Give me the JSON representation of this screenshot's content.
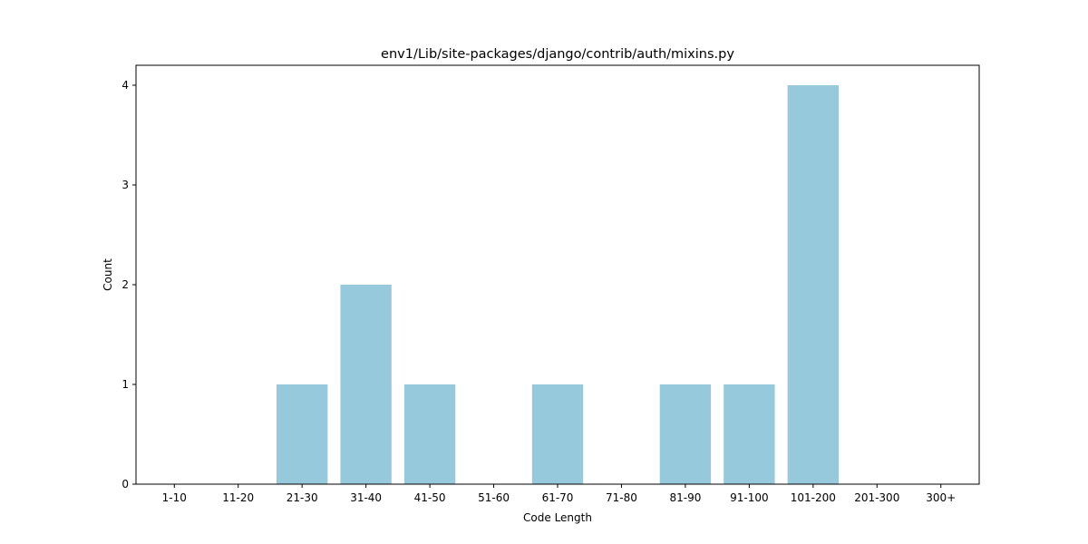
{
  "chart_data": {
    "type": "bar",
    "title": "env1/Lib/site-packages/django/contrib/auth/mixins.py",
    "xlabel": "Code Length",
    "ylabel": "Count",
    "categories": [
      "1-10",
      "11-20",
      "21-30",
      "31-40",
      "41-50",
      "51-60",
      "61-70",
      "71-80",
      "81-90",
      "91-100",
      "101-200",
      "201-300",
      "300+"
    ],
    "values": [
      0,
      0,
      1,
      2,
      1,
      0,
      1,
      0,
      1,
      1,
      4,
      0,
      0
    ],
    "ylim": [
      0,
      4.2
    ],
    "yticks": [
      0,
      1,
      2,
      3,
      4
    ],
    "grid": false,
    "legend": "none",
    "bar_color": "#96c9dc"
  }
}
